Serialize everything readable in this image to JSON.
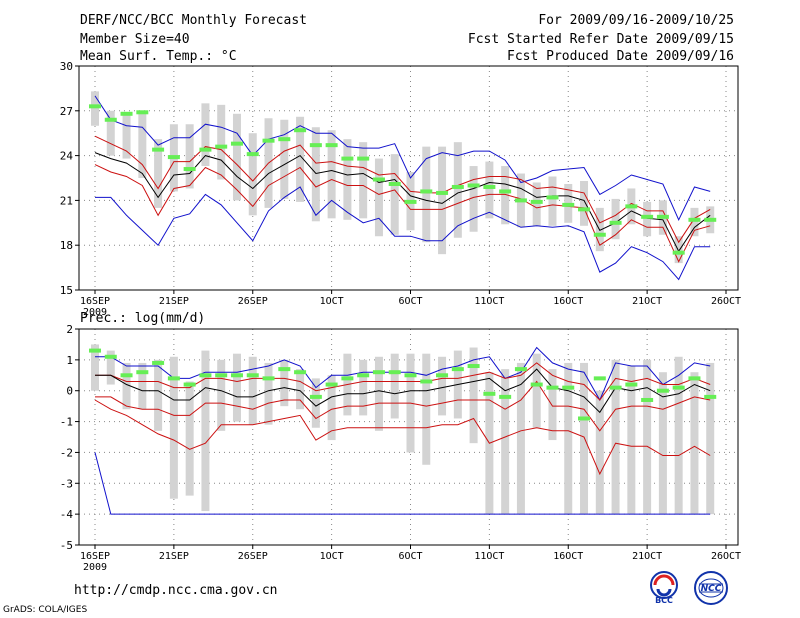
{
  "header": {
    "title": "DERF/NCC/BCC Monthly Forecast",
    "member_size": "Member Size=40",
    "variable": "Mean Surf. Temp.: °C",
    "period": "For 2009/09/16-2009/10/25",
    "fcst_started": "Fcst Started Refer Date 2009/09/15",
    "fcst_produced": "Fcst Produced Date 2009/09/16"
  },
  "footer": {
    "url": "http://cmdp.ncc.cma.gov.cn",
    "grads": "GrADS: COLA/IGES",
    "logo_bcc_text": "BCC",
    "logo_ncc_text": "NCC"
  },
  "colors": {
    "ensemble_bar": "#d3d3d3",
    "observed_marker": "#66ee55",
    "ensemble_mean": "#000000",
    "spread_inner": "#cc1111",
    "spread_outer": "#1111cc",
    "grid": "#888888"
  },
  "chart_data": [
    {
      "id": "temperature",
      "type": "line",
      "title": "Mean Surf. Temp.: °C",
      "xlabel": "",
      "ylabel": "°C",
      "ylim": [
        15,
        30
      ],
      "yticks": [
        15,
        18,
        21,
        24,
        27,
        30
      ],
      "xlim": [
        1,
        41
      ],
      "xticks": [
        {
          "day": 1,
          "label": "16SEP",
          "sublabel": "2009"
        },
        {
          "day": 6,
          "label": "21SEP"
        },
        {
          "day": 11,
          "label": "26SEP"
        },
        {
          "day": 16,
          "label": "1OCT"
        },
        {
          "day": 21,
          "label": "6OCT"
        },
        {
          "day": 26,
          "label": "11OCT"
        },
        {
          "day": 31,
          "label": "16OCT"
        },
        {
          "day": 36,
          "label": "21OCT"
        },
        {
          "day": 41,
          "label": "26OCT"
        }
      ],
      "days": [
        1,
        2,
        3,
        4,
        5,
        6,
        7,
        8,
        9,
        10,
        11,
        12,
        13,
        14,
        15,
        16,
        17,
        18,
        19,
        20,
        21,
        22,
        23,
        24,
        25,
        26,
        27,
        28,
        29,
        30,
        31,
        32,
        33,
        34,
        35,
        36,
        37,
        38,
        39,
        40
      ],
      "mean": [
        24.2,
        23.8,
        23.5,
        22.8,
        21.2,
        22.7,
        22.8,
        24.0,
        23.7,
        22.6,
        21.8,
        22.8,
        23.4,
        24.0,
        22.8,
        23.0,
        22.7,
        22.8,
        22.2,
        22.4,
        21.3,
        21.0,
        20.8,
        21.5,
        21.8,
        22.2,
        22.1,
        21.8,
        21.2,
        21.3,
        21.3,
        21.0,
        19.0,
        19.5,
        20.3,
        19.8,
        19.7,
        17.6,
        19.2,
        20.0
      ],
      "inner_upper": [
        25.3,
        24.8,
        24.3,
        23.4,
        21.8,
        23.6,
        23.6,
        24.6,
        24.4,
        23.4,
        22.3,
        23.5,
        24.3,
        24.7,
        23.5,
        23.6,
        23.3,
        23.2,
        22.7,
        22.8,
        21.6,
        21.5,
        21.5,
        22.0,
        22.4,
        22.6,
        22.6,
        22.4,
        21.8,
        21.9,
        21.7,
        21.5,
        19.5,
        20.0,
        20.8,
        20.3,
        20.3,
        18.2,
        19.8,
        20.4
      ],
      "inner_lower": [
        23.4,
        22.9,
        22.6,
        22.0,
        20.0,
        21.8,
        22.0,
        23.2,
        22.7,
        21.7,
        20.6,
        22.0,
        22.6,
        23.2,
        21.9,
        22.4,
        22.0,
        22.0,
        21.4,
        21.7,
        20.4,
        20.4,
        20.4,
        20.8,
        21.2,
        21.4,
        21.4,
        21.1,
        20.5,
        20.7,
        20.6,
        20.5,
        18.0,
        18.7,
        19.7,
        19.2,
        19.2,
        16.9,
        19.0,
        19.3
      ],
      "outer_upper": [
        28.0,
        26.4,
        26.0,
        25.9,
        24.7,
        25.2,
        25.2,
        26.1,
        25.9,
        25.5,
        24.0,
        25.1,
        25.4,
        26.0,
        25.5,
        25.5,
        24.6,
        24.5,
        24.5,
        24.8,
        22.5,
        23.8,
        24.2,
        24.0,
        24.3,
        24.3,
        23.7,
        22.2,
        22.5,
        23.0,
        23.1,
        23.2,
        21.4,
        22.0,
        22.7,
        22.4,
        22.1,
        19.7,
        21.9,
        21.6
      ],
      "outer_lower": [
        21.2,
        21.2,
        20.0,
        19.0,
        18.0,
        19.8,
        20.1,
        21.4,
        20.7,
        19.5,
        18.3,
        20.3,
        21.2,
        21.9,
        20.0,
        21.0,
        20.2,
        19.5,
        19.8,
        18.6,
        18.6,
        18.3,
        18.3,
        19.3,
        19.8,
        20.2,
        19.7,
        19.2,
        19.3,
        19.2,
        19.3,
        18.9,
        16.2,
        16.8,
        17.9,
        17.5,
        16.9,
        15.7,
        17.9,
        17.9
      ],
      "bar_top": [
        28.3,
        27.0,
        26.9,
        27.0,
        25.1,
        26.1,
        26.1,
        27.5,
        27.4,
        26.8,
        25.5,
        26.5,
        26.4,
        26.6,
        25.9,
        25.7,
        25.1,
        24.9,
        23.8,
        24.1,
        22.9,
        24.6,
        24.6,
        24.9,
        23.3,
        23.6,
        23.3,
        22.8,
        22.2,
        22.6,
        22.1,
        22.3,
        20.5,
        21.1,
        21.8,
        20.9,
        21.0,
        18.6,
        20.5,
        20.6
      ],
      "bar_bottom": [
        26.0,
        24.0,
        23.8,
        22.5,
        20.5,
        21.6,
        21.8,
        23.3,
        22.4,
        21.0,
        20.0,
        20.5,
        21.1,
        20.9,
        19.6,
        19.8,
        19.7,
        19.8,
        18.6,
        18.7,
        19.0,
        18.2,
        17.4,
        18.5,
        18.9,
        19.8,
        19.4,
        19.2,
        19.3,
        19.3,
        19.5,
        19.3,
        17.6,
        18.4,
        19.4,
        18.6,
        18.7,
        16.8,
        18.6,
        18.8
      ],
      "observed": [
        27.3,
        26.4,
        26.8,
        26.9,
        24.4,
        23.9,
        23.1,
        24.4,
        24.6,
        24.8,
        24.1,
        25.0,
        25.1,
        25.7,
        24.7,
        24.7,
        23.8,
        23.8,
        22.4,
        22.1,
        20.9,
        21.6,
        21.5,
        21.9,
        22.0,
        21.9,
        21.6,
        21.0,
        20.9,
        21.2,
        20.7,
        20.4,
        18.7,
        19.5,
        20.6,
        19.9,
        19.9,
        17.5,
        19.7,
        19.7
      ]
    },
    {
      "id": "precipitation",
      "type": "line",
      "title": "Prec.: log(mm/d)",
      "xlabel": "",
      "ylabel": "log(mm/d)",
      "ylim": [
        -5,
        2
      ],
      "yticks": [
        -5,
        -4,
        -3,
        -2,
        -1,
        0,
        1,
        2
      ],
      "xlim": [
        1,
        41
      ],
      "xticks": [
        {
          "day": 1,
          "label": "16SEP",
          "sublabel": "2009"
        },
        {
          "day": 6,
          "label": "21SEP"
        },
        {
          "day": 11,
          "label": "26SEP"
        },
        {
          "day": 16,
          "label": "1OCT"
        },
        {
          "day": 21,
          "label": "6OCT"
        },
        {
          "day": 26,
          "label": "11OCT"
        },
        {
          "day": 31,
          "label": "16OCT"
        },
        {
          "day": 36,
          "label": "21OCT"
        },
        {
          "day": 41,
          "label": "26OCT"
        }
      ],
      "days": [
        1,
        2,
        3,
        4,
        5,
        6,
        7,
        8,
        9,
        10,
        11,
        12,
        13,
        14,
        15,
        16,
        17,
        18,
        19,
        20,
        21,
        22,
        23,
        24,
        25,
        26,
        27,
        28,
        29,
        30,
        31,
        32,
        33,
        34,
        35,
        36,
        37,
        38,
        39,
        40
      ],
      "mean": [
        0.5,
        0.5,
        0.2,
        0.0,
        0.0,
        -0.3,
        -0.3,
        0.1,
        0.0,
        -0.2,
        -0.2,
        0.0,
        0.1,
        0.0,
        -0.5,
        -0.2,
        -0.1,
        -0.1,
        0.0,
        -0.1,
        0.0,
        0.0,
        0.1,
        0.2,
        0.3,
        0.4,
        0.0,
        0.2,
        0.7,
        0.1,
        0.0,
        -0.2,
        -0.7,
        0.1,
        0.0,
        0.1,
        -0.2,
        -0.1,
        0.2,
        0.0
      ],
      "inner_upper": [
        0.5,
        0.5,
        0.3,
        0.3,
        0.3,
        0.1,
        0.1,
        0.4,
        0.4,
        0.3,
        0.4,
        0.4,
        0.4,
        0.3,
        0.0,
        0.1,
        0.2,
        0.3,
        0.3,
        0.3,
        0.3,
        0.3,
        0.4,
        0.4,
        0.5,
        0.6,
        0.4,
        0.5,
        0.9,
        0.5,
        0.3,
        0.2,
        -0.3,
        0.4,
        0.3,
        0.4,
        0.2,
        0.2,
        0.4,
        0.2
      ],
      "inner_lower": [
        -0.2,
        -0.2,
        -0.5,
        -0.6,
        -0.6,
        -0.8,
        -0.8,
        -0.4,
        -0.4,
        -0.5,
        -0.6,
        -0.4,
        -0.3,
        -0.3,
        -0.9,
        -0.6,
        -0.5,
        -0.5,
        -0.4,
        -0.4,
        -0.4,
        -0.5,
        -0.4,
        -0.3,
        -0.3,
        -0.3,
        -0.6,
        -0.3,
        0.3,
        -0.5,
        -0.5,
        -0.6,
        -1.3,
        -0.6,
        -0.5,
        -0.5,
        -0.6,
        -0.4,
        -0.2,
        -0.3
      ],
      "outer_upper": [
        1.1,
        1.1,
        0.8,
        0.8,
        0.8,
        0.4,
        0.4,
        0.6,
        0.6,
        0.6,
        0.7,
        0.8,
        1.0,
        0.8,
        0.1,
        0.5,
        0.5,
        0.6,
        0.6,
        0.6,
        0.6,
        0.5,
        0.7,
        0.8,
        1.0,
        1.1,
        0.4,
        0.6,
        1.4,
        0.9,
        0.7,
        0.6,
        -0.3,
        0.9,
        0.8,
        0.8,
        0.2,
        0.5,
        0.9,
        0.8
      ],
      "outer_lower": [
        -2.0,
        -4.0,
        -4.0,
        -4.0,
        -4.0,
        -4.0,
        -4.0,
        -4.0,
        -4.0,
        -4.0,
        -4.0,
        -4.0,
        -4.0,
        -4.0,
        -4.0,
        -4.0,
        -4.0,
        -4.0,
        -4.0,
        -4.0,
        -4.0,
        -4.0,
        -4.0,
        -4.0,
        -4.0,
        -4.0,
        -4.0,
        -4.0,
        -4.0,
        -4.0,
        -4.0,
        -4.0,
        -4.0,
        -4.0,
        -4.0,
        -4.0,
        -4.0,
        -4.0,
        -4.0,
        -4.0
      ],
      "red_low": [
        -0.3,
        -0.6,
        -0.8,
        -1.1,
        -1.4,
        -1.6,
        -1.9,
        -1.7,
        -1.1,
        -1.1,
        -1.1,
        -1.0,
        -0.9,
        -0.8,
        -1.6,
        -1.3,
        -1.2,
        -1.2,
        -1.2,
        -1.2,
        -1.2,
        -1.2,
        -1.1,
        -1.1,
        -0.9,
        -1.7,
        -1.5,
        -1.3,
        -1.2,
        -1.3,
        -1.3,
        -1.5,
        -2.7,
        -1.7,
        -1.8,
        -1.8,
        -2.1,
        -2.1,
        -1.8,
        -2.1
      ],
      "bar_top": [
        1.5,
        1.3,
        0.9,
        0.9,
        1.0,
        1.1,
        0.3,
        1.3,
        1.0,
        1.2,
        1.1,
        0.9,
        1.0,
        0.7,
        0.4,
        0.5,
        1.2,
        1.0,
        1.1,
        1.2,
        1.2,
        1.2,
        1.1,
        1.3,
        1.4,
        0.6,
        0.7,
        0.9,
        1.2,
        0.7,
        0.9,
        0.9,
        0.0,
        1.0,
        0.8,
        1.0,
        0.6,
        1.1,
        0.6,
        0.9
      ],
      "bar_bottom": [
        0.0,
        0.2,
        -0.6,
        -0.6,
        -1.3,
        -3.5,
        -3.4,
        -3.9,
        -1.3,
        -1.0,
        -1.1,
        -1.1,
        -0.5,
        -0.6,
        -1.2,
        -1.6,
        -0.8,
        -0.8,
        -1.3,
        -0.9,
        -2.0,
        -2.4,
        -0.8,
        -0.9,
        -1.7,
        -4.0,
        -4.0,
        -4.0,
        -1.2,
        -1.6,
        -4.0,
        -4.0,
        -4.0,
        -4.0,
        -4.0,
        -4.0,
        -4.0,
        -4.0,
        -4.0,
        -4.0
      ],
      "observed": [
        1.3,
        1.1,
        0.5,
        0.6,
        0.9,
        0.4,
        0.2,
        0.5,
        0.5,
        0.5,
        0.5,
        0.4,
        0.7,
        0.6,
        -0.2,
        0.2,
        0.4,
        0.5,
        0.6,
        0.6,
        0.5,
        0.3,
        0.5,
        0.7,
        0.8,
        -0.1,
        -0.2,
        0.7,
        0.2,
        0.1,
        0.1,
        -0.9,
        0.4,
        0.1,
        0.2,
        -0.3,
        0.0,
        0.1,
        0.4,
        -0.2
      ]
    }
  ]
}
